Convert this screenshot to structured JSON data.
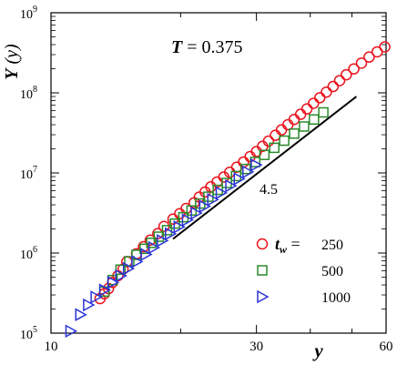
{
  "chart_data": {
    "type": "scatter",
    "xlabel": "y",
    "ylabel": "Y (y)",
    "ylabel_parts": {
      "main": "Y",
      "arg": "(y)"
    },
    "annotation": {
      "var": "T",
      "text": " = 0.375"
    },
    "xscale": "log",
    "yscale": "log",
    "xlim": [
      10,
      60
    ],
    "ylim": [
      100000,
      1000000000
    ],
    "x_tick_labels": [
      "10",
      "30",
      "60"
    ],
    "y_tick_labels": [
      {
        "base": "10",
        "exp": "5"
      },
      {
        "base": "10",
        "exp": "6"
      },
      {
        "base": "10",
        "exp": "7"
      },
      {
        "base": "10",
        "exp": "8"
      },
      {
        "base": "10",
        "exp": "9"
      }
    ],
    "slope_line": {
      "label": "4.5",
      "slope": 4.5,
      "x": [
        19.2,
        51.2
      ],
      "y": [
        1500000,
        90000000
      ]
    },
    "legend_title": {
      "var": "t",
      "sub": "w",
      "eq": " ="
    },
    "legend_position": "bottom-right",
    "series": [
      {
        "name": "250",
        "marker": "circle",
        "color": "#e8141e",
        "x": [
          13.0,
          13.3,
          13.6,
          13.9,
          14.3,
          14.7,
          15.0,
          15.8,
          16.4,
          17.0,
          17.7,
          18.3,
          19.2,
          19.9,
          20.6,
          21.5,
          22.1,
          22.8,
          23.5,
          24.3,
          25.2,
          26.0,
          27.0,
          28.0,
          29.0,
          30.0,
          31.0,
          32.0,
          33.2,
          34.3,
          35.5,
          36.7,
          38.0,
          39.3,
          40.7,
          42.1,
          43.6,
          45.2,
          46.8,
          48.5,
          50.5,
          52.6,
          54.8,
          57.2,
          59.6
        ],
        "y": [
          270000,
          310000,
          360000,
          430000,
          520000,
          630000,
          780000,
          980000,
          1200000,
          1450000,
          1750000,
          2150000,
          2650000,
          3100000,
          3600000,
          4250000,
          5000000,
          5800000,
          6700000,
          7700000,
          8900000,
          10200000,
          11800000,
          13700000,
          16000000,
          18500000,
          21500000,
          25000000,
          29500000,
          34500000,
          40000000,
          46500000,
          54000000,
          63000000,
          74000000,
          87000000,
          102000000,
          120000000,
          142000000,
          168000000,
          199000000,
          235000000,
          280000000,
          325000000,
          375000000
        ]
      },
      {
        "name": "500",
        "marker": "square",
        "color": "#2a8a2a",
        "x": [
          13.3,
          13.9,
          14.5,
          15.2,
          15.8,
          16.5,
          17.1,
          17.8,
          18.6,
          19.4,
          20.3,
          21.2,
          22.2,
          23.2,
          24.4,
          25.6,
          26.9,
          28.3,
          29.8,
          31.3,
          33.0,
          34.8,
          36.7,
          38.7,
          40.8,
          42.9
        ],
        "y": [
          330000,
          460000,
          620000,
          790000,
          950000,
          1130000,
          1340000,
          1600000,
          1930000,
          2330000,
          2800000,
          3400000,
          4150000,
          5050000,
          6150000,
          7500000,
          9150000,
          11200000,
          13700000,
          16800000,
          20600000,
          25300000,
          31000000,
          38000000,
          46500000,
          57000000
        ]
      },
      {
        "name": "1000",
        "marker": "triangle-right",
        "color": "#2b34d6",
        "x": [
          11.1,
          11.7,
          12.2,
          12.7,
          13.3,
          13.9,
          14.5,
          15.1,
          15.8,
          16.6,
          17.3,
          18.1,
          18.9,
          19.8,
          20.7,
          21.7,
          22.7,
          23.7,
          24.8,
          26.1,
          27.3,
          28.6,
          29.9
        ],
        "y": [
          106000,
          170000,
          225000,
          282000,
          345000,
          430000,
          520000,
          640000,
          780000,
          960000,
          1170000,
          1430000,
          1740000,
          2120000,
          2590000,
          3150000,
          3830000,
          4650000,
          5650000,
          6900000,
          8450000,
          10300000,
          12600000
        ]
      }
    ]
  }
}
